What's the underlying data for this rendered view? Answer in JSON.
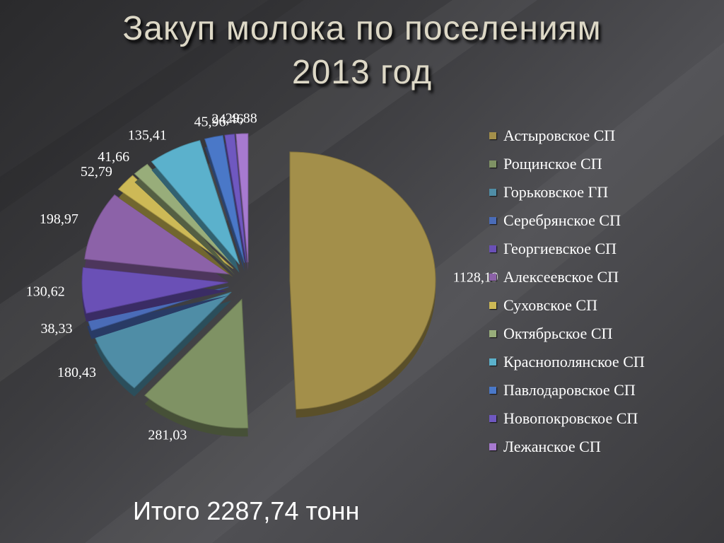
{
  "slide": {
    "title_line1": "Закуп молока по поселениям",
    "title_line2": "2013 год",
    "total_text": "Итого 2287,74 тонн"
  },
  "chart_data": {
    "type": "pie",
    "title": "",
    "legend_position": "right",
    "exploded": true,
    "slices": [
      {
        "name": "Астыровское СП",
        "value": 1128.19,
        "label": "1128,19",
        "color": "#a38f4a"
      },
      {
        "name": "Рощинское СП",
        "value": 281.03,
        "label": "281,03",
        "color": "#7f9264"
      },
      {
        "name": "Горьковское ГП",
        "value": 180.43,
        "label": "180,43",
        "color": "#4f8da6"
      },
      {
        "name": "Серебрянское СП",
        "value": 38.33,
        "label": "38,33",
        "color": "#4a6cb8"
      },
      {
        "name": "Георгиевское СП",
        "value": 130.62,
        "label": "130,62",
        "color": "#6a50b6"
      },
      {
        "name": "Алексеевское СП",
        "value": 198.97,
        "label": "198,97",
        "color": "#8c62a8"
      },
      {
        "name": "Суховское СП",
        "value": 52.79,
        "label": "52,79",
        "color": "#cdb956"
      },
      {
        "name": "Октябрьское СП",
        "value": 41.66,
        "label": "41,66",
        "color": "#98ad7a"
      },
      {
        "name": "Краснополянское СП",
        "value": 135.41,
        "label": "135,41",
        "color": "#5bb1cc"
      },
      {
        "name": "Павлодаровское СП",
        "value": 45.96,
        "label": "45,96",
        "color": "#4a78c8"
      },
      {
        "name": "Новопокровское СП",
        "value": 24.46,
        "label": "24,46",
        "color": "#6f58c0"
      },
      {
        "name": "Лежанское СП",
        "value": 29.88,
        "label": "29,88",
        "color": "#a77ad0"
      }
    ]
  }
}
